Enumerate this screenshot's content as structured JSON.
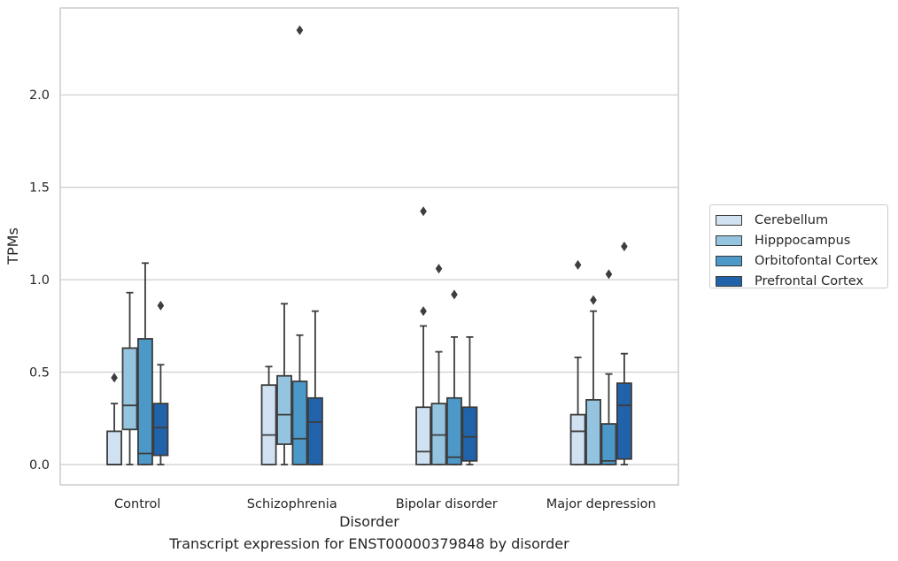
{
  "chart_data": {
    "type": "box",
    "title": "",
    "caption": "Transcript expression for ENST00000379848 by disorder",
    "xlabel": "Disorder",
    "ylabel": "TPMs",
    "ylim": [
      -0.11,
      2.47
    ],
    "yticks": [
      "0.0",
      "0.5",
      "1.0",
      "1.5",
      "2.0"
    ],
    "ytick_values": [
      0.0,
      0.5,
      1.0,
      1.5,
      2.0
    ],
    "grid": "horizontal",
    "legend_position": "right",
    "categories": [
      "Control",
      "Schizophrenia",
      "Bipolar disorder",
      "Major depression"
    ],
    "series": [
      {
        "name": "Cerebellum",
        "color": "#d0e1f2",
        "boxes": [
          {
            "whisker_low": 0.0,
            "q1": 0.0,
            "median": 0.0,
            "q3": 0.18,
            "whisker_high": 0.33,
            "outliers": [
              0.47
            ]
          },
          {
            "whisker_low": 0.0,
            "q1": 0.0,
            "median": 0.16,
            "q3": 0.43,
            "whisker_high": 0.53,
            "outliers": []
          },
          {
            "whisker_low": 0.0,
            "q1": 0.0,
            "median": 0.07,
            "q3": 0.31,
            "whisker_high": 0.75,
            "outliers": [
              0.83,
              1.37
            ]
          },
          {
            "whisker_low": 0.0,
            "q1": 0.0,
            "median": 0.18,
            "q3": 0.27,
            "whisker_high": 0.58,
            "outliers": [
              1.08
            ]
          }
        ]
      },
      {
        "name": "Hipppocampus",
        "color": "#94c4df",
        "boxes": [
          {
            "whisker_low": 0.0,
            "q1": 0.19,
            "median": 0.32,
            "q3": 0.63,
            "whisker_high": 0.93,
            "outliers": []
          },
          {
            "whisker_low": 0.0,
            "q1": 0.11,
            "median": 0.27,
            "q3": 0.48,
            "whisker_high": 0.87,
            "outliers": []
          },
          {
            "whisker_low": 0.0,
            "q1": 0.0,
            "median": 0.16,
            "q3": 0.33,
            "whisker_high": 0.61,
            "outliers": [
              1.06
            ]
          },
          {
            "whisker_low": 0.0,
            "q1": 0.0,
            "median": 0.0,
            "q3": 0.35,
            "whisker_high": 0.83,
            "outliers": [
              0.89
            ]
          }
        ]
      },
      {
        "name": "Orbitofontal Cortex",
        "color": "#4b98c9",
        "boxes": [
          {
            "whisker_low": 0.0,
            "q1": 0.0,
            "median": 0.06,
            "q3": 0.68,
            "whisker_high": 1.09,
            "outliers": []
          },
          {
            "whisker_low": 0.0,
            "q1": 0.0,
            "median": 0.14,
            "q3": 0.45,
            "whisker_high": 0.7,
            "outliers": [
              2.35
            ]
          },
          {
            "whisker_low": 0.0,
            "q1": 0.0,
            "median": 0.04,
            "q3": 0.36,
            "whisker_high": 0.69,
            "outliers": [
              0.92
            ]
          },
          {
            "whisker_low": 0.0,
            "q1": 0.0,
            "median": 0.02,
            "q3": 0.22,
            "whisker_high": 0.49,
            "outliers": [
              1.03
            ]
          }
        ]
      },
      {
        "name": "Prefrontal Cortex",
        "color": "#2163aa",
        "boxes": [
          {
            "whisker_low": 0.0,
            "q1": 0.05,
            "median": 0.2,
            "q3": 0.33,
            "whisker_high": 0.54,
            "outliers": [
              0.86
            ]
          },
          {
            "whisker_low": 0.0,
            "q1": 0.0,
            "median": 0.23,
            "q3": 0.36,
            "whisker_high": 0.83,
            "outliers": []
          },
          {
            "whisker_low": 0.0,
            "q1": 0.02,
            "median": 0.15,
            "q3": 0.31,
            "whisker_high": 0.69,
            "outliers": []
          },
          {
            "whisker_low": 0.0,
            "q1": 0.03,
            "median": 0.32,
            "q3": 0.44,
            "whisker_high": 0.6,
            "outliers": [
              1.18
            ]
          }
        ]
      }
    ]
  }
}
